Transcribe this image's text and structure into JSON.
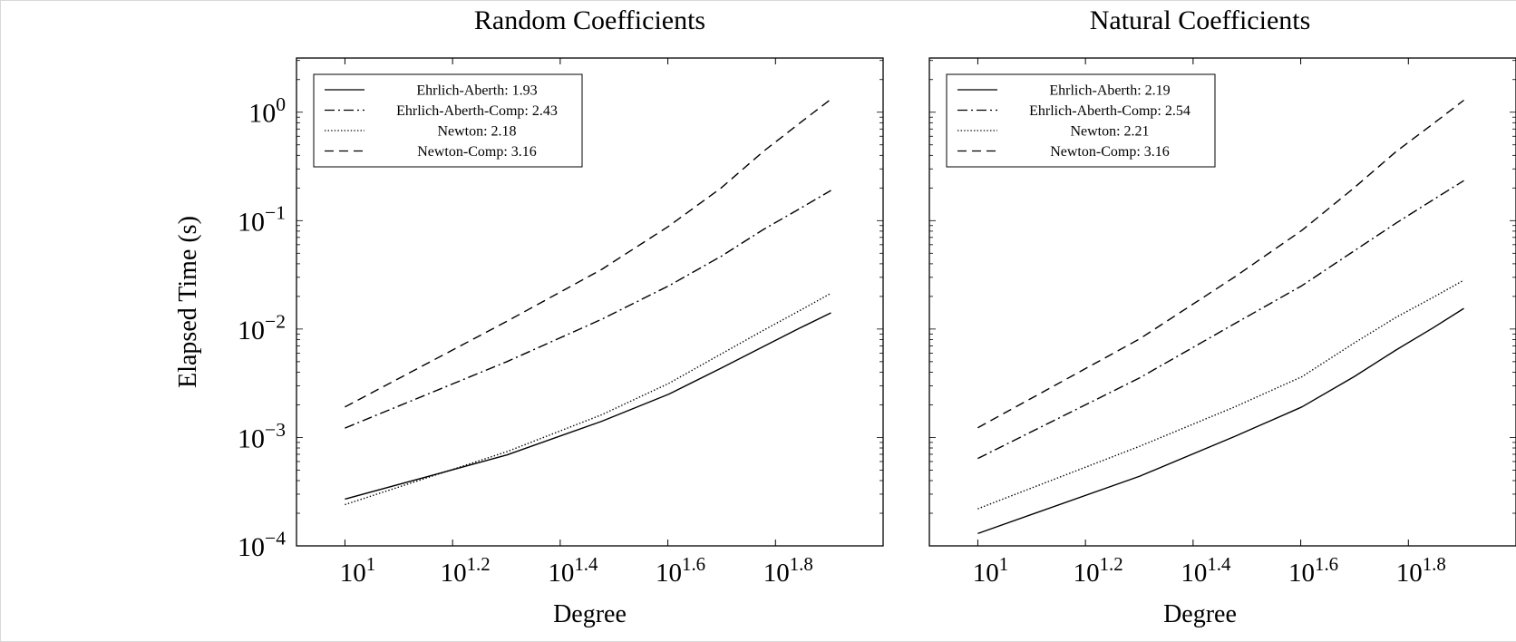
{
  "chart_data": [
    {
      "type": "line",
      "title": "Random Coefficients",
      "xlabel": "Degree",
      "ylabel": "Elapsed Time (s)",
      "x_scale": "log10",
      "y_scale": "log10",
      "xlim": [
        8.128,
        100
      ],
      "ylim": [
        0.0001,
        3.16
      ],
      "x_ticks": [
        10,
        15.849,
        25.119,
        39.811,
        63.096
      ],
      "x_tick_labels": [
        {
          "base": "10",
          "exp": "1"
        },
        {
          "base": "10",
          "exp": "1.2"
        },
        {
          "base": "10",
          "exp": "1.4"
        },
        {
          "base": "10",
          "exp": "1.6"
        },
        {
          "base": "10",
          "exp": "1.8"
        }
      ],
      "y_ticks": [
        0.0001,
        0.001,
        0.01,
        0.1,
        1
      ],
      "y_tick_labels": [
        {
          "base": "10",
          "exp": "−4"
        },
        {
          "base": "10",
          "exp": "−3"
        },
        {
          "base": "10",
          "exp": "−2"
        },
        {
          "base": "10",
          "exp": "−1"
        },
        {
          "base": "10",
          "exp": "0"
        }
      ],
      "grid": false,
      "legend_position": "top-left",
      "series": [
        {
          "name": "Ehrlich-Aberth: 1.93",
          "style": "solid",
          "x": [
            10,
            20,
            30,
            40,
            50,
            60,
            70,
            80
          ],
          "y": [
            0.00027,
            0.00069,
            0.00141,
            0.00251,
            0.00436,
            0.00692,
            0.0102,
            0.0141
          ]
        },
        {
          "name": "Ehrlich-Aberth-Comp: 2.43",
          "style": "dashdot",
          "x": [
            10,
            20,
            30,
            40,
            50,
            60,
            70,
            80
          ],
          "y": [
            0.00122,
            0.00501,
            0.0123,
            0.0251,
            0.0468,
            0.0832,
            0.129,
            0.19
          ]
        },
        {
          "name": "Newton: 2.18",
          "style": "dotted",
          "x": [
            10,
            20,
            30,
            40,
            50,
            60,
            70,
            80
          ],
          "y": [
            0.00024,
            0.00074,
            0.00162,
            0.00316,
            0.00589,
            0.00977,
            0.0148,
            0.0214
          ]
        },
        {
          "name": "Newton-Comp: 3.16",
          "style": "dashed",
          "x": [
            10,
            20,
            30,
            40,
            50,
            60,
            70,
            80
          ],
          "y": [
            0.00191,
            0.0118,
            0.0355,
            0.0891,
            0.2,
            0.437,
            0.794,
            1.32
          ]
        }
      ]
    },
    {
      "type": "line",
      "title": "Natural Coefficients",
      "xlabel": "Degree",
      "x_scale": "log10",
      "y_scale": "log10",
      "xlim": [
        8.128,
        100
      ],
      "ylim": [
        0.0001,
        3.16
      ],
      "x_ticks": [
        10,
        15.849,
        25.119,
        39.811,
        63.096
      ],
      "x_tick_labels": [
        {
          "base": "10",
          "exp": "1"
        },
        {
          "base": "10",
          "exp": "1.2"
        },
        {
          "base": "10",
          "exp": "1.4"
        },
        {
          "base": "10",
          "exp": "1.6"
        },
        {
          "base": "10",
          "exp": "1.8"
        }
      ],
      "y_ticks": [
        0.0001,
        0.001,
        0.01,
        0.1,
        1
      ],
      "grid": false,
      "legend_position": "top-left",
      "series": [
        {
          "name": "Ehrlich-Aberth: 2.19",
          "style": "solid",
          "x": [
            10,
            20,
            30,
            40,
            50,
            60,
            70,
            80
          ],
          "y": [
            0.00013,
            0.00044,
            0.00102,
            0.00191,
            0.00363,
            0.00646,
            0.0102,
            0.0155
          ]
        },
        {
          "name": "Ehrlich-Aberth-Comp: 2.54",
          "style": "dashdot",
          "x": [
            10,
            20,
            30,
            40,
            50,
            60,
            70,
            80
          ],
          "y": [
            0.00064,
            0.00355,
            0.0112,
            0.0251,
            0.0525,
            0.0955,
            0.155,
            0.234
          ]
        },
        {
          "name": "Newton: 2.21",
          "style": "dotted",
          "x": [
            10,
            20,
            30,
            40,
            50,
            60,
            70,
            80
          ],
          "y": [
            0.00022,
            0.00083,
            0.00191,
            0.00363,
            0.00741,
            0.0129,
            0.0195,
            0.0282
          ]
        },
        {
          "name": "Newton-Comp: 3.16",
          "style": "dashed",
          "x": [
            10,
            20,
            30,
            40,
            50,
            60,
            70,
            80
          ],
          "y": [
            0.00123,
            0.00813,
            0.0302,
            0.0813,
            0.2,
            0.437,
            0.776,
            1.29
          ]
        }
      ]
    }
  ]
}
